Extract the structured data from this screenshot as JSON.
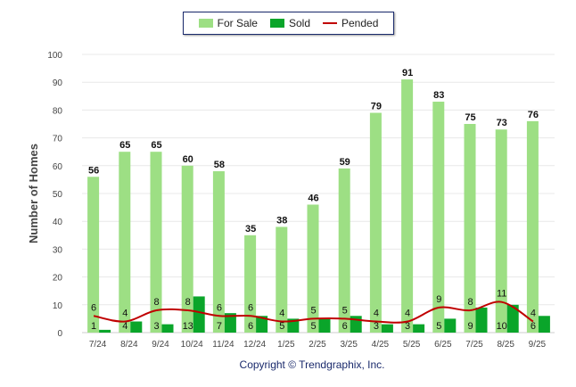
{
  "chart_data": {
    "type": "bar",
    "categories": [
      "7/24",
      "8/24",
      "9/24",
      "10/24",
      "11/24",
      "12/24",
      "1/25",
      "2/25",
      "3/25",
      "4/25",
      "5/25",
      "6/25",
      "7/25",
      "8/25",
      "9/25"
    ],
    "series": [
      {
        "name": "For Sale",
        "type": "bar",
        "color": "#9ddf84",
        "values": [
          56,
          65,
          65,
          60,
          58,
          35,
          38,
          46,
          59,
          79,
          91,
          83,
          75,
          73,
          76
        ]
      },
      {
        "name": "Sold",
        "type": "bar",
        "color": "#0aa52a",
        "values": [
          1,
          4,
          3,
          13,
          7,
          6,
          5,
          5,
          6,
          3,
          3,
          5,
          9,
          10,
          6
        ]
      },
      {
        "name": "Pended",
        "type": "line",
        "color": "#c00000",
        "values": [
          6,
          4,
          8,
          8,
          6,
          6,
          4,
          5,
          5,
          4,
          4,
          9,
          8,
          11,
          4
        ]
      }
    ],
    "ylabel": "Number of Homes",
    "xlabel": "",
    "ylim": [
      0,
      100
    ],
    "yticks": [
      0,
      10,
      20,
      30,
      40,
      50,
      60,
      70,
      80,
      90,
      100
    ],
    "grid": true,
    "legend": "top-center"
  },
  "footer": {
    "copyright": "Copyright © Trendgraphix, Inc."
  }
}
